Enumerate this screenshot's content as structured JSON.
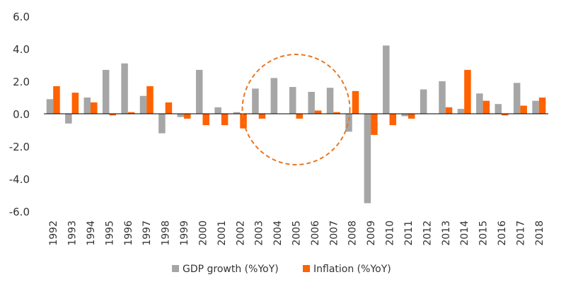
{
  "chart_data": {
    "type": "bar",
    "categories": [
      "1992",
      "1993",
      "1994",
      "1995",
      "1996",
      "1997",
      "1998",
      "1999",
      "2000",
      "2001",
      "2002",
      "2003",
      "2004",
      "2005",
      "2006",
      "2007",
      "2008",
      "2009",
      "2010",
      "2011",
      "2012",
      "2013",
      "2014",
      "2015",
      "2016",
      "2017",
      "2018"
    ],
    "series": [
      {
        "name": "GDP growth (%YoY)",
        "color": "#a6a6a6",
        "values": [
          0.9,
          -0.6,
          1.0,
          2.7,
          3.1,
          1.1,
          -1.2,
          -0.2,
          2.7,
          0.4,
          0.1,
          1.55,
          2.2,
          1.65,
          1.35,
          1.6,
          -1.1,
          -5.5,
          4.2,
          -0.15,
          1.5,
          2.0,
          0.3,
          1.25,
          0.6,
          1.9,
          0.8
        ]
      },
      {
        "name": "Inflation (%YoY)",
        "color": "#ff6200",
        "values": [
          1.7,
          1.3,
          0.7,
          -0.1,
          0.1,
          1.7,
          0.7,
          -0.3,
          -0.7,
          -0.7,
          -0.9,
          -0.3,
          0.0,
          -0.3,
          0.2,
          0.1,
          1.4,
          -1.3,
          -0.7,
          -0.3,
          0.0,
          0.4,
          2.7,
          0.8,
          -0.1,
          0.5,
          1.0
        ]
      }
    ],
    "yticks": [
      "6.0",
      "4.0",
      "2.0",
      "0.0",
      "-2.0",
      "-4.0",
      "-6.0"
    ],
    "ylim": [
      -6,
      6
    ],
    "grid": false,
    "legend_position": "bottom-center",
    "annotation": {
      "shape": "dashed-circle",
      "color": "#e87722",
      "center_category": "2005"
    }
  }
}
